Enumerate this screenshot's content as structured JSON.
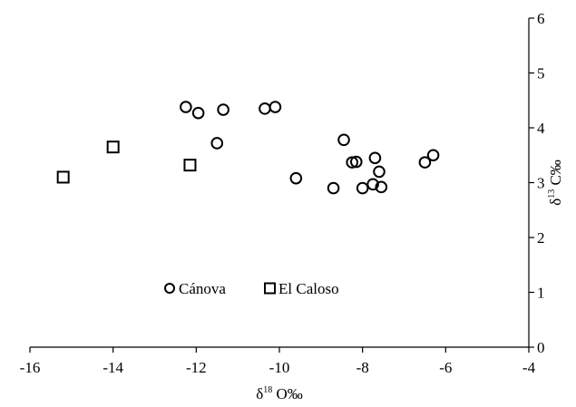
{
  "chart_data": {
    "type": "scatter",
    "xlabel": {
      "pre": "δ",
      "sup": "18",
      "post": " O‰"
    },
    "ylabel": {
      "pre": "δ",
      "sup": "13",
      "post": " C‰"
    },
    "xlim": [
      -16,
      -4
    ],
    "ylim": [
      0,
      6
    ],
    "x_ticks": [
      -16,
      -14,
      -12,
      -10,
      -8,
      -6,
      -4
    ],
    "y_ticks": [
      0,
      1,
      2,
      3,
      4,
      5,
      6
    ],
    "y_axis_position": "right",
    "grid": false,
    "legend_position": "bottom-center",
    "series": [
      {
        "name": "Cánova",
        "marker": "circle",
        "points": [
          [
            -12.25,
            4.38
          ],
          [
            -11.95,
            4.27
          ],
          [
            -11.35,
            4.33
          ],
          [
            -10.35,
            4.35
          ],
          [
            -10.1,
            4.38
          ],
          [
            -11.5,
            3.72
          ],
          [
            -9.6,
            3.08
          ],
          [
            -8.7,
            2.9
          ],
          [
            -8.45,
            3.78
          ],
          [
            -8.25,
            3.37
          ],
          [
            -8.15,
            3.38
          ],
          [
            -8.0,
            2.9
          ],
          [
            -7.75,
            2.97
          ],
          [
            -7.7,
            3.45
          ],
          [
            -7.6,
            3.2
          ],
          [
            -7.55,
            2.92
          ],
          [
            -6.5,
            3.37
          ],
          [
            -6.3,
            3.5
          ]
        ]
      },
      {
        "name": "El Caloso",
        "marker": "square",
        "points": [
          [
            -15.2,
            3.1
          ],
          [
            -14.0,
            3.65
          ],
          [
            -12.15,
            3.32
          ]
        ]
      }
    ]
  }
}
